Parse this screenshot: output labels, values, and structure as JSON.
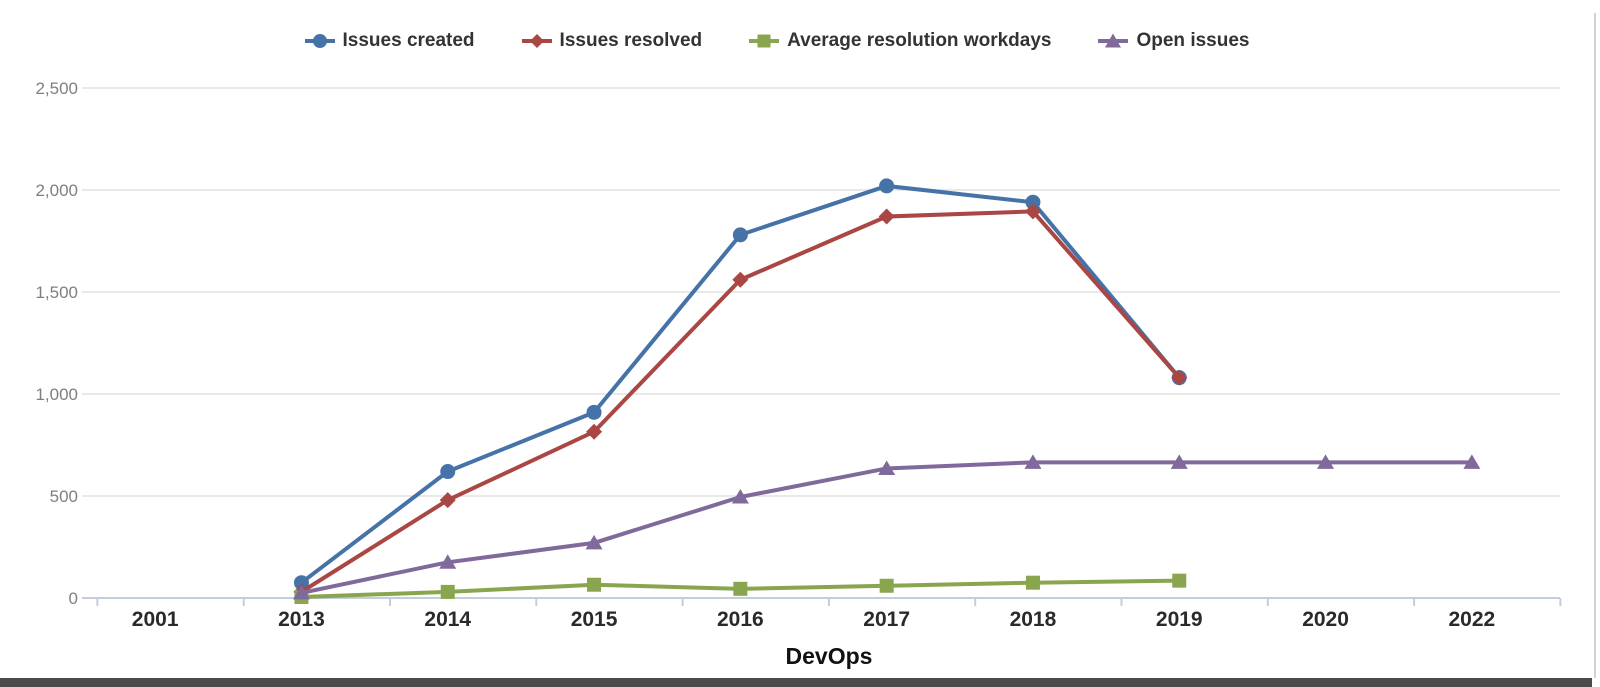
{
  "frame": {
    "bottom_bar_color": "#4a4a4a",
    "right_scroll_line_color": "#d2d2d2",
    "background_color": "#ffffff"
  },
  "axis_style": {
    "grid_color": "#e2e2e2",
    "axis_line_color": "#c3cdde",
    "y_label_color": "#7f7f7f",
    "x_label_color": "#2a2a2a",
    "x_title_color": "#111111"
  },
  "chart_data": {
    "type": "line",
    "title": "",
    "xlabel": "DevOps",
    "ylabel": "",
    "grid": "horizontal",
    "legend_position": "top",
    "categories": [
      "2001",
      "2013",
      "2014",
      "2015",
      "2016",
      "2017",
      "2018",
      "2019",
      "2020",
      "2022"
    ],
    "y_ticks": [
      {
        "value": 0,
        "label": "0"
      },
      {
        "value": 500,
        "label": "500"
      },
      {
        "value": 1000,
        "label": "1,000"
      },
      {
        "value": 1500,
        "label": "1,500"
      },
      {
        "value": 2000,
        "label": "2,000"
      },
      {
        "value": 2500,
        "label": "2,500"
      }
    ],
    "ylim": [
      0,
      2500
    ],
    "series": [
      {
        "name": "Issues created",
        "color": "#4572A7",
        "marker": "circle",
        "values": [
          null,
          75,
          620,
          910,
          1780,
          2020,
          1940,
          1080,
          null,
          null
        ]
      },
      {
        "name": "Issues resolved",
        "color": "#AA4643",
        "marker": "diamond",
        "values": [
          null,
          30,
          480,
          815,
          1560,
          1870,
          1895,
          1080,
          null,
          null
        ]
      },
      {
        "name": "Average resolution workdays",
        "color": "#89A54E",
        "marker": "square",
        "values": [
          null,
          5,
          30,
          65,
          45,
          60,
          75,
          85,
          null,
          null
        ]
      },
      {
        "name": "Open issues",
        "color": "#80699B",
        "marker": "triangle",
        "values": [
          null,
          25,
          175,
          270,
          495,
          635,
          665,
          665,
          665,
          665
        ]
      }
    ]
  }
}
